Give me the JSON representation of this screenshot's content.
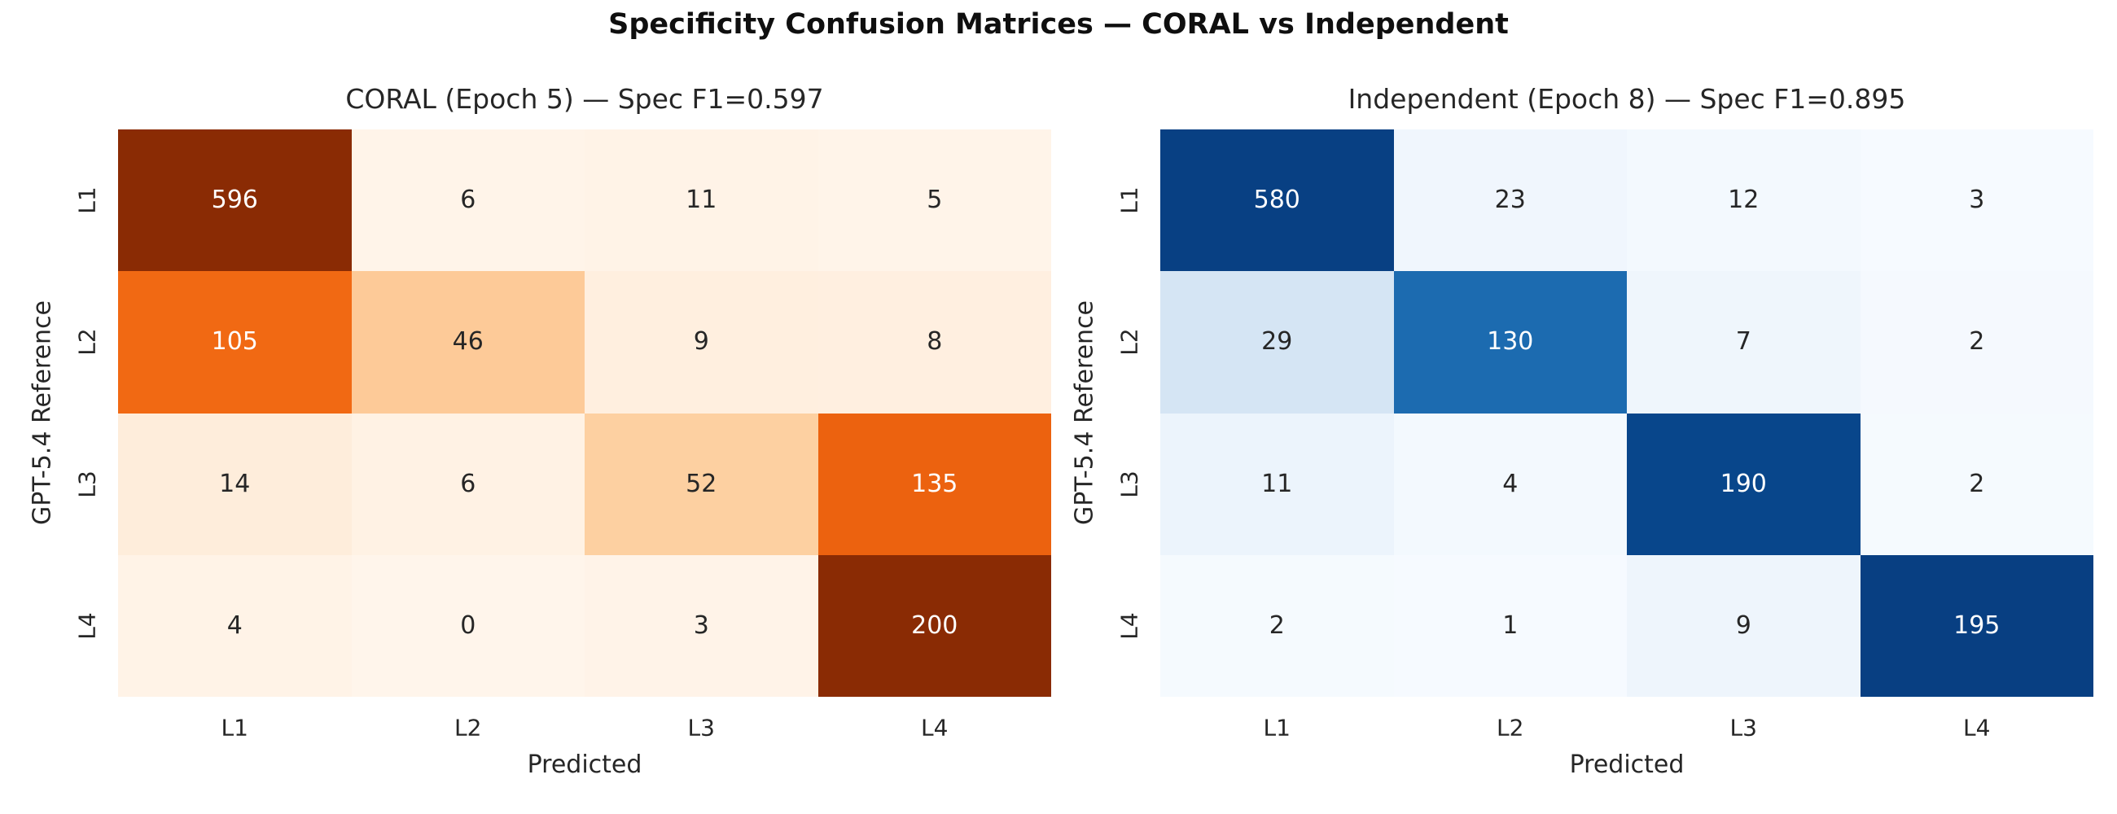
{
  "figure": {
    "title": "Specificity Confusion Matrices — CORAL vs Independent",
    "background_color": "#ffffff",
    "text_color": "#262626"
  },
  "chart_data": [
    {
      "type": "heatmap",
      "title": "CORAL (Epoch 5) — Spec F1=0.597",
      "xlabel": "Predicted",
      "ylabel": "GPT-5.4 Reference",
      "x_categories": [
        "L1",
        "L2",
        "L3",
        "L4"
      ],
      "y_categories": [
        "L1",
        "L2",
        "L3",
        "L4"
      ],
      "values": [
        [
          596,
          6,
          11,
          5
        ],
        [
          105,
          46,
          9,
          8
        ],
        [
          14,
          6,
          52,
          135
        ],
        [
          4,
          0,
          3,
          200
        ]
      ],
      "annotated": true,
      "colorbar": false,
      "colormap": "Oranges",
      "color_normalization": "row_fraction",
      "colormap_anchors": [
        "#fff5eb",
        "#fee6ce",
        "#fdd0a2",
        "#fdae6b",
        "#fd8d3c",
        "#f16913",
        "#d94801",
        "#a63603",
        "#7f2704"
      ],
      "annotation_colors": {
        "light_cell_text": "#262626",
        "dark_cell_text": "#ffffff"
      }
    },
    {
      "type": "heatmap",
      "title": "Independent (Epoch 8) — Spec F1=0.895",
      "xlabel": "Predicted",
      "ylabel": "GPT-5.4 Reference",
      "x_categories": [
        "L1",
        "L2",
        "L3",
        "L4"
      ],
      "y_categories": [
        "L1",
        "L2",
        "L3",
        "L4"
      ],
      "values": [
        [
          580,
          23,
          12,
          3
        ],
        [
          29,
          130,
          7,
          2
        ],
        [
          11,
          4,
          190,
          2
        ],
        [
          2,
          1,
          9,
          195
        ]
      ],
      "annotated": true,
      "colorbar": false,
      "colormap": "Blues",
      "color_normalization": "row_fraction",
      "colormap_anchors": [
        "#f7fbff",
        "#deebf7",
        "#c6dbef",
        "#9ecae1",
        "#6baed6",
        "#4292c6",
        "#2171b5",
        "#08519c",
        "#08306b"
      ],
      "annotation_colors": {
        "light_cell_text": "#262626",
        "dark_cell_text": "#ffffff"
      }
    }
  ]
}
